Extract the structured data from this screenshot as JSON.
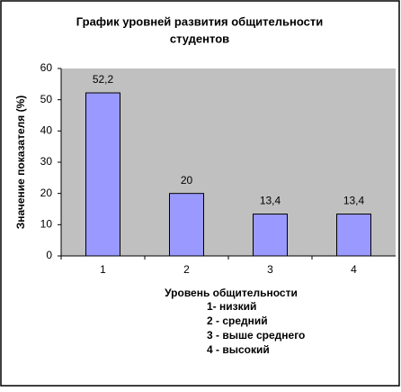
{
  "chart_data": {
    "type": "bar",
    "title": [
      "График уровней развития общительности",
      "студентов"
    ],
    "y_label": "Значение показателя (%)",
    "x_label": "Уровень общительности",
    "notes": [
      "1- низкий",
      "2 - средний",
      "3 - выше среднего",
      "4 - высокий"
    ],
    "categories": [
      "1",
      "2",
      "3",
      "4"
    ],
    "values": [
      52.2,
      20,
      13.4,
      13.4
    ],
    "value_labels": [
      "52,2",
      "20",
      "13,4",
      "13,4"
    ],
    "color": "#9999ff",
    "ylim": [
      0,
      60
    ],
    "yticks": [
      0,
      10,
      20,
      30,
      40,
      50,
      60
    ]
  }
}
